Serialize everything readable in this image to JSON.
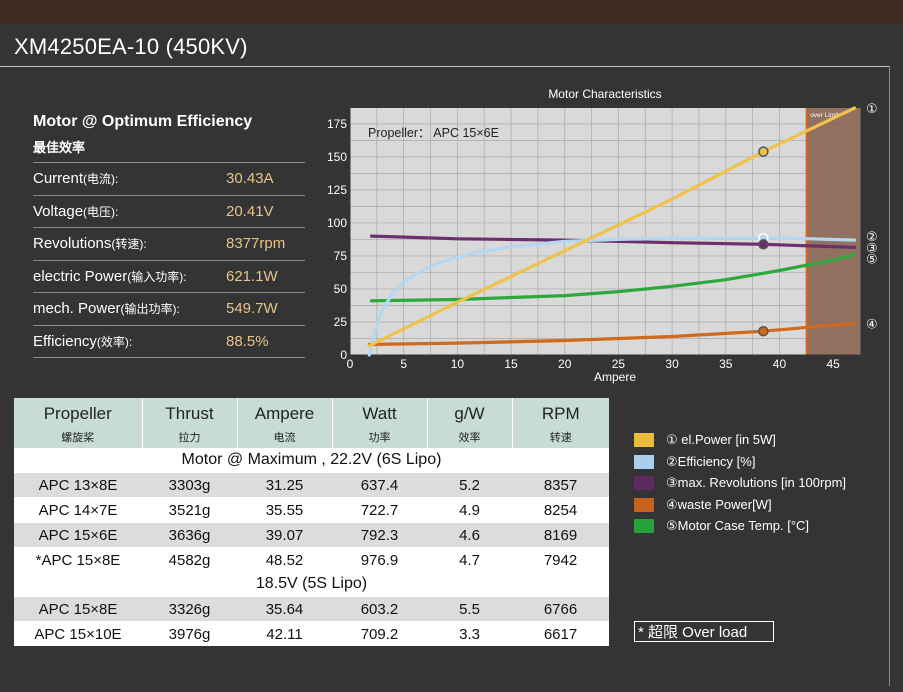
{
  "header": {
    "title": "XM4250EA-10 (450KV)"
  },
  "optimum": {
    "title": "Motor @ Optimum Efficiency",
    "subtitle": "最佳效率",
    "rows": [
      {
        "label": "Current",
        "zh": "(电流):",
        "value": "30.43A"
      },
      {
        "label": "Voltage",
        "zh": "(电压):",
        "value": "20.41V"
      },
      {
        "label": "Revolutions",
        "zh": "(转速):",
        "value": "8377rpm"
      },
      {
        "label": "electric Power",
        "zh": "(输入功率):",
        "value": "621.1W"
      },
      {
        "label": "mech. Power",
        "zh": "(输出功率):",
        "value": "549.7W"
      },
      {
        "label": "Efficiency",
        "zh": "(效率):",
        "value": "88.5%"
      }
    ]
  },
  "chart_data": {
    "type": "line",
    "title": "Motor Characteristics",
    "xlabel": "Ampere",
    "ylabel": "",
    "annotation": "Propeller： APC 15×6E",
    "overlimit_label": "over Limit",
    "xlim": [
      0,
      47.5
    ],
    "ylim": [
      0,
      187
    ],
    "x_ticks": [
      0,
      5,
      10,
      15,
      20,
      25,
      30,
      35,
      40,
      45
    ],
    "y_ticks": [
      0,
      25,
      50,
      75,
      100,
      125,
      150,
      175
    ],
    "grid": true,
    "overlimit_start": 42.5,
    "marker_x": 38.5,
    "series": [
      {
        "name": "el.Power [in 5W]",
        "id": "1",
        "color": "#efc24a",
        "x": [
          1.8,
          10,
          20,
          30,
          38.5,
          47
        ],
        "y": [
          7,
          40,
          79,
          118,
          154,
          187
        ]
      },
      {
        "name": "Efficiency [%]",
        "id": "2",
        "color": "#b6d7f0",
        "x": [
          1.8,
          2.2,
          3,
          4,
          5,
          6,
          8,
          10,
          12,
          15,
          20,
          25,
          30,
          35,
          38.5,
          42,
          47
        ],
        "y": [
          0,
          15,
          34,
          47,
          55,
          61,
          69,
          74,
          78,
          82,
          86,
          87.5,
          88.3,
          88.6,
          88.5,
          88.2,
          87
        ]
      },
      {
        "name": "max. Revolutions [in 100rpm]",
        "id": "3",
        "color": "#6b2f6b",
        "x": [
          2,
          10,
          20,
          30,
          38.5,
          47
        ],
        "y": [
          90,
          88,
          87,
          85,
          83.8,
          81.5
        ]
      },
      {
        "name": "waste Power[W]",
        "id": "4",
        "color": "#cf6a1e",
        "x": [
          1.8,
          10,
          20,
          30,
          38.5,
          47
        ],
        "y": [
          8,
          9,
          11,
          14,
          18,
          24
        ]
      },
      {
        "name": "Motor Case Temp. [°C]",
        "id": "5",
        "color": "#2ea83d",
        "x": [
          2,
          10,
          20,
          25,
          30,
          35,
          40,
          45,
          47
        ],
        "y": [
          41,
          42,
          45,
          48,
          52,
          57,
          64,
          72,
          76
        ]
      }
    ]
  },
  "table": {
    "headers": [
      {
        "en": "Propeller",
        "zh": "螺旋桨"
      },
      {
        "en": "Thrust",
        "zh": "拉力"
      },
      {
        "en": "Ampere",
        "zh": "电流"
      },
      {
        "en": "Watt",
        "zh": "功率"
      },
      {
        "en": "g/W",
        "zh": "效率"
      },
      {
        "en": "RPM",
        "zh": "转速"
      }
    ],
    "section1": "Motor @ Maximum , 22.2V (6S Lipo)",
    "rows1": [
      [
        "APC 13×8E",
        "3303g",
        "31.25",
        "637.4",
        "5.2",
        "8357"
      ],
      [
        "APC 14×7E",
        "3521g",
        "35.55",
        "722.7",
        "4.9",
        "8254"
      ],
      [
        "APC 15×6E",
        "3636g",
        "39.07",
        "792.3",
        "4.6",
        "8169"
      ],
      [
        "*APC 15×8E",
        "4582g",
        "48.52",
        "976.9",
        "4.7",
        "7942"
      ]
    ],
    "section2": "18.5V (5S Lipo)",
    "rows2": [
      [
        "APC 15×8E",
        "3326g",
        "35.64",
        "603.2",
        "5.5",
        "6766"
      ],
      [
        "APC 15×10E",
        "3976g",
        "42.11",
        "709.2",
        "3.3",
        "6617"
      ]
    ]
  },
  "legend": [
    {
      "text": "① el.Power [in 5W]",
      "color": "#e9bc3c"
    },
    {
      "text": "②Efficiency [%]",
      "color": "#a9cfee"
    },
    {
      "text": "③max. Revolutions [in 100rpm]",
      "color": "#5e2a60"
    },
    {
      "text": "④waste Power[W]",
      "color": "#c7631c"
    },
    {
      "text": "⑤Motor Case Temp. [°C]",
      "color": "#24a23a"
    }
  ],
  "overload_note": "* 超限 Over load"
}
